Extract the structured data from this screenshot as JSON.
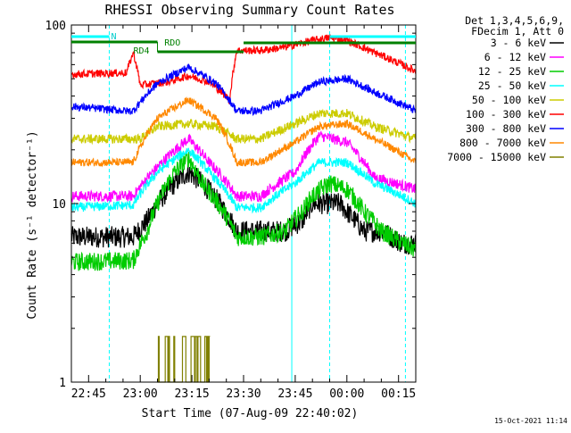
{
  "chart_data": {
    "type": "line",
    "title": "RHESSI Observing Summary Count Rates",
    "xlabel": "Start Time (07-Aug-09 22:40:02)",
    "ylabel": "Count Rate (s⁻¹ detector⁻¹)",
    "yscale": "log",
    "ylim": [
      1,
      100
    ],
    "xlim_minutes": [
      0,
      100
    ],
    "x_tick_labels": [
      "22:45",
      "23:00",
      "23:15",
      "23:30",
      "23:45",
      "00:00",
      "00:15"
    ],
    "y_tick_labels": [
      "1",
      "10",
      "100"
    ],
    "legend": {
      "placement": "right",
      "header": [
        "Det 1,3,4,5,6,9,",
        "FDecim 1, Att 0"
      ]
    },
    "annotations": {
      "flag_labels": [
        "N",
        "RDO",
        "RD4"
      ],
      "timestamp": "15-Oct-2021 11:14"
    },
    "series": [
      {
        "name": "3 - 6 keV",
        "color": "#000000",
        "x": [
          0,
          18,
          22,
          25,
          30,
          34,
          38,
          48,
          55,
          62,
          67,
          70,
          75,
          78,
          80,
          85,
          90,
          96,
          100
        ],
        "y": [
          6.5,
          6.5,
          8,
          10,
          13,
          15,
          13,
          7,
          7,
          7,
          8,
          10,
          10,
          10,
          9,
          7,
          7,
          6,
          6
        ]
      },
      {
        "name": "6 - 12 keV",
        "color": "#ff00ff",
        "x": [
          0,
          18,
          25,
          34,
          40,
          48,
          55,
          65,
          72,
          80,
          88,
          100
        ],
        "y": [
          11,
          11,
          16,
          23,
          17,
          11,
          11,
          15,
          24,
          22,
          14,
          12
        ]
      },
      {
        "name": "12 - 25 keV",
        "color": "#00cc00",
        "x": [
          0,
          18,
          22,
          25,
          30,
          34,
          38,
          48,
          55,
          62,
          67,
          70,
          75,
          80,
          85,
          90,
          96,
          100
        ],
        "y": [
          4.7,
          4.8,
          7,
          10,
          15,
          18,
          13,
          6.5,
          6.5,
          7,
          9,
          11,
          13,
          12,
          9,
          7,
          6,
          5.5
        ]
      },
      {
        "name": "25 - 50 keV",
        "color": "#00ffff",
        "x": [
          0,
          18,
          25,
          34,
          40,
          48,
          55,
          65,
          72,
          80,
          88,
          100
        ],
        "y": [
          9.5,
          9.8,
          15,
          20,
          15,
          9.5,
          9.5,
          13,
          17,
          17,
          13,
          10
        ]
      },
      {
        "name": "50 - 100 keV",
        "color": "#cccc00",
        "x": [
          0,
          18,
          20,
          25,
          34,
          42,
          48,
          55,
          65,
          72,
          80,
          88,
          100
        ],
        "y": [
          23,
          23,
          23,
          27,
          28,
          27,
          23,
          23,
          28,
          32,
          32,
          27,
          23
        ]
      },
      {
        "name": "100 - 300 keV",
        "color": "#ff0000",
        "x": [
          0,
          16,
          18,
          20,
          28,
          34,
          40,
          46,
          48,
          55,
          62,
          70,
          75,
          80,
          88,
          100
        ],
        "y": [
          53,
          54,
          70,
          46,
          48,
          52,
          48,
          38,
          72,
          72,
          75,
          82,
          85,
          82,
          70,
          55
        ]
      },
      {
        "name": "300 - 800 keV",
        "color": "#0000ff",
        "x": [
          0,
          16,
          18,
          25,
          34,
          42,
          48,
          55,
          65,
          72,
          80,
          88,
          100
        ],
        "y": [
          35,
          33,
          33,
          47,
          58,
          47,
          33,
          33,
          40,
          48,
          50,
          42,
          33
        ]
      },
      {
        "name": "800 - 7000 keV",
        "color": "#ff8800",
        "x": [
          0,
          18,
          25,
          34,
          42,
          48,
          55,
          65,
          72,
          80,
          88,
          100
        ],
        "y": [
          17,
          17,
          30,
          38,
          30,
          17,
          17,
          22,
          27,
          28,
          23,
          17
        ]
      },
      {
        "name": "7000 - 15000 keV",
        "color": "#808000",
        "x": [
          25,
          26,
          27,
          28,
          29,
          30,
          31,
          32,
          33,
          34,
          35,
          36,
          37,
          38,
          39,
          40
        ],
        "y": [
          1.8,
          1,
          1.8,
          1.8,
          1,
          1.8,
          1,
          1.8,
          1.8,
          1,
          1.8,
          1.8,
          1.8,
          1,
          1.8,
          1.8
        ]
      }
    ]
  }
}
